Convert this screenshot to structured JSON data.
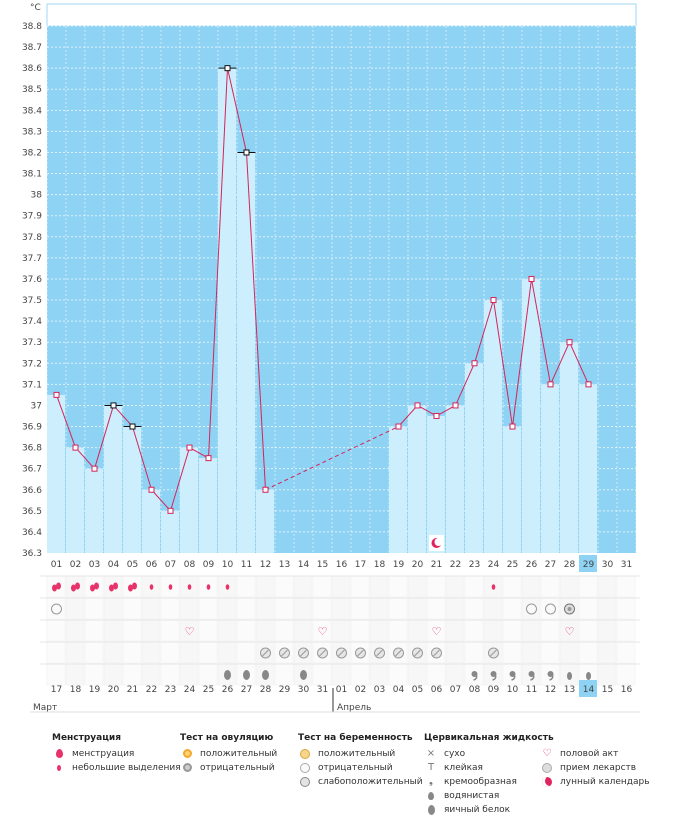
{
  "unit_label": "°C",
  "months": [
    "Март",
    "Апрель"
  ],
  "chart_data": {
    "type": "bar+line",
    "ylabel": "°C",
    "ylim": [
      36.3,
      38.8
    ],
    "yticks": [
      "36.3",
      "36.4",
      "36.5",
      "36.6",
      "36.7",
      "36.8",
      "36.9",
      "37",
      "37.1",
      "37.2",
      "37.3",
      "37.4",
      "37.5",
      "37.6",
      "37.7",
      "37.8",
      "37.9",
      "38",
      "38.1",
      "38.2",
      "38.3",
      "38.4",
      "38.5",
      "38.6",
      "38.7",
      "38.8"
    ],
    "cycle_days": [
      "01",
      "02",
      "03",
      "04",
      "05",
      "06",
      "07",
      "08",
      "09",
      "10",
      "11",
      "12",
      "13",
      "14",
      "15",
      "16",
      "17",
      "18",
      "19",
      "20",
      "21",
      "22",
      "23",
      "24",
      "25",
      "26",
      "27",
      "28",
      "29",
      "30",
      "31"
    ],
    "calendar_dates": [
      "17",
      "18",
      "19",
      "20",
      "21",
      "22",
      "23",
      "24",
      "25",
      "26",
      "27",
      "28",
      "29",
      "30",
      "31",
      "01",
      "02",
      "03",
      "04",
      "05",
      "06",
      "07",
      "08",
      "09",
      "10",
      "11",
      "12",
      "13",
      "14",
      "15",
      "16"
    ],
    "highlight_cycle_day": "29",
    "highlight_date": "14",
    "temperatures": [
      37.05,
      36.8,
      36.7,
      37.0,
      36.9,
      36.6,
      36.5,
      36.8,
      36.75,
      38.6,
      38.2,
      36.6,
      null,
      null,
      null,
      null,
      null,
      null,
      36.9,
      37.0,
      36.95,
      37.0,
      37.2,
      37.5,
      36.9,
      37.6,
      37.1,
      37.3,
      37.1,
      null,
      null
    ],
    "excluded_markers": [
      4,
      5,
      10,
      11
    ],
    "dashed_segment": [
      12,
      19
    ],
    "moon_day": 21
  },
  "rows": {
    "menstruation": [
      "big",
      "big",
      "big",
      "big",
      "big",
      "small",
      "small",
      "small",
      "small",
      "small",
      null,
      null,
      null,
      null,
      null,
      null,
      null,
      null,
      null,
      null,
      null,
      null,
      null,
      "small",
      null,
      null,
      null,
      null,
      null,
      null,
      null
    ],
    "ovulation_test": [
      "neg",
      null,
      null,
      null,
      null,
      null,
      null,
      null,
      null,
      null,
      null,
      null,
      null,
      null,
      null,
      null,
      null,
      null,
      null,
      null,
      null,
      null,
      null,
      null,
      null,
      "neg",
      "neg",
      "weak",
      null,
      null,
      null
    ],
    "sex": [
      null,
      null,
      null,
      null,
      null,
      null,
      null,
      "heart",
      null,
      null,
      null,
      null,
      null,
      null,
      "heart",
      null,
      null,
      null,
      null,
      null,
      "heart",
      null,
      null,
      null,
      null,
      null,
      null,
      "heart",
      null,
      null,
      null
    ],
    "medicine": [
      null,
      null,
      null,
      null,
      null,
      null,
      null,
      null,
      null,
      null,
      null,
      "pill",
      "pill",
      "pill",
      "pill",
      "pill",
      "pill",
      "pill",
      "pill",
      "pill",
      "pill",
      null,
      null,
      "pill",
      null,
      null,
      null,
      null,
      null,
      null,
      null
    ],
    "cervical": [
      null,
      null,
      null,
      null,
      null,
      null,
      null,
      null,
      null,
      "egg",
      "egg",
      "egg",
      null,
      "egg",
      null,
      null,
      null,
      null,
      null,
      null,
      null,
      null,
      "creamy",
      "creamy",
      "creamy",
      "creamy",
      "creamy",
      "watery",
      "watery",
      null,
      null
    ]
  },
  "legend": {
    "menstruation": {
      "title": "Менструация",
      "items": [
        "менструация",
        "небольшие выделения"
      ]
    },
    "ovulation": {
      "title": "Тест на овуляцию",
      "items": [
        "положительный",
        "отрицательный"
      ]
    },
    "pregnancy": {
      "title": "Тест на беременность",
      "items": [
        "положительный",
        "отрицательный",
        "слабоположительный"
      ]
    },
    "cervical": {
      "title": "Цервикальная жидкость",
      "items": [
        "сухо",
        "клейкая",
        "кремообразная",
        "водянистая",
        "яичный белок"
      ]
    },
    "other": {
      "items": [
        "половой акт",
        "прием лекарств",
        "лунный календарь"
      ]
    }
  },
  "colors": {
    "sky": "#8fd3f4",
    "bar": "#cdeefd",
    "line": "#d4245a",
    "highlight": "#8fd3f4",
    "red_text": "#e0245e"
  }
}
